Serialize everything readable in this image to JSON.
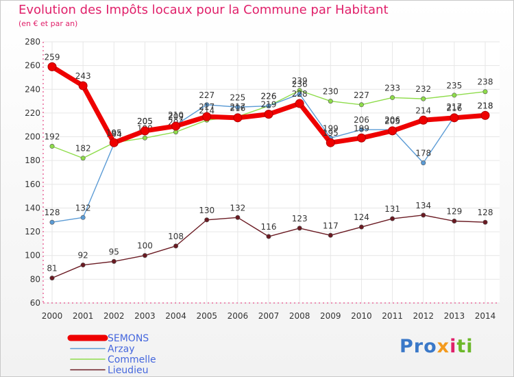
{
  "header": {
    "title": "Evolution des Impôts locaux pour la Commune par Habitant",
    "subtitle": "(en € et par an)"
  },
  "brand": {
    "p1": "Pro",
    "p2": "x",
    "p3": "i",
    "p4": "ti"
  },
  "colors": {
    "title": "#e0206a",
    "axis": "#e0206a",
    "tick": "#333333",
    "grid": "#e6e6e6",
    "legend_text": "#4466dd"
  },
  "chart_data": {
    "type": "line",
    "x": [
      "2000",
      "2001",
      "2002",
      "2003",
      "2004",
      "2005",
      "2006",
      "2007",
      "2008",
      "2009",
      "2010",
      "2011",
      "2012",
      "2013",
      "2014"
    ],
    "ylim": [
      60,
      280
    ],
    "yticks": [
      60,
      80,
      100,
      120,
      140,
      160,
      180,
      200,
      220,
      240,
      260,
      280
    ],
    "grid": true,
    "legend": "bottom-left",
    "series": [
      {
        "name": "Lieudieu",
        "color": "#6a1a22",
        "values": [
          81,
          92,
          95,
          100,
          108,
          130,
          132,
          116,
          123,
          117,
          124,
          131,
          134,
          129,
          128
        ]
      },
      {
        "name": "Commelle",
        "color": "#8edc4a",
        "values": [
          192,
          182,
          195,
          199,
          204,
          214,
          217,
          226,
          239,
          230,
          227,
          233,
          232,
          235,
          238
        ]
      },
      {
        "name": "Arzay",
        "color": "#5b9bd5",
        "values": [
          128,
          132,
          194,
          205,
          210,
          227,
          225,
          226,
          236,
          199,
          206,
          206,
          178,
          217,
          218
        ]
      },
      {
        "name": "SEMONS",
        "color": "#ee0000",
        "values": [
          259,
          243,
          195,
          205,
          209,
          217,
          216,
          219,
          228,
          195,
          199,
          205,
          214,
          216,
          218
        ]
      }
    ],
    "legend_entries": [
      {
        "name": "SEMONS",
        "color": "#ee0000"
      },
      {
        "name": "Arzay",
        "color": "#5b9bd5"
      },
      {
        "name": "Commelle",
        "color": "#8edc4a"
      },
      {
        "name": "Lieudieu",
        "color": "#6a1a22"
      }
    ]
  }
}
